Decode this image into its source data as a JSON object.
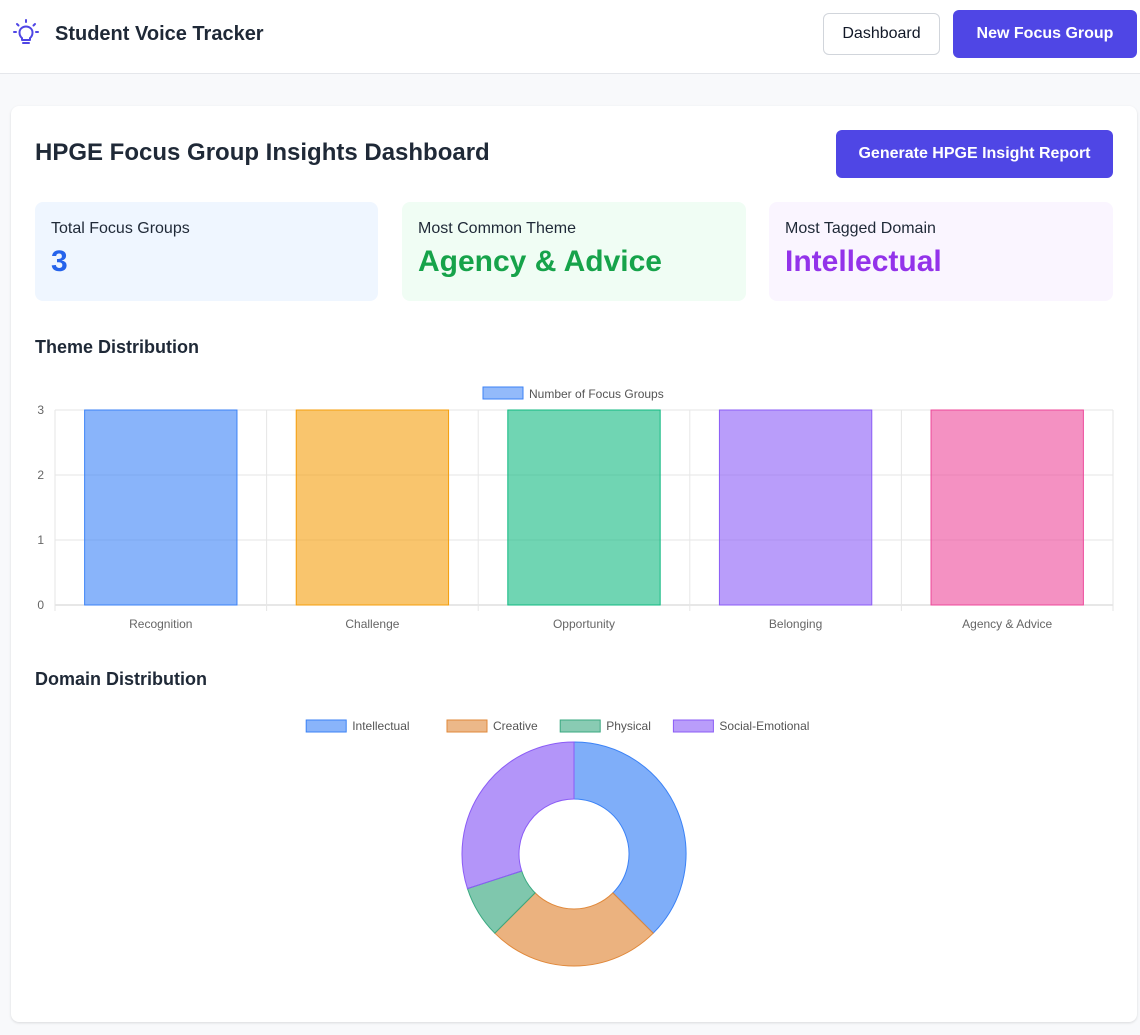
{
  "app": {
    "title": "Student Voice Tracker",
    "icon": "lightbulb-icon",
    "accent_color": "#4f46e5"
  },
  "nav": {
    "dashboard_label": "Dashboard",
    "new_focus_group_label": "New Focus Group"
  },
  "main": {
    "title": "HPGE Focus Group Insights Dashboard",
    "report_button_label": "Generate HPGE Insight Report"
  },
  "stats": [
    {
      "label": "Total Focus Groups",
      "value": "3",
      "color": "#2563eb"
    },
    {
      "label": "Most Common Theme",
      "value": "Agency & Advice",
      "color": "#16a34a"
    },
    {
      "label": "Most Tagged Domain",
      "value": "Intellectual",
      "color": "#9333ea"
    }
  ],
  "sections": {
    "theme_title": "Theme Distribution",
    "domain_title": "Domain Distribution"
  },
  "chart_data": [
    {
      "type": "bar",
      "legend": [
        "Number of Focus Groups"
      ],
      "legend_placement": "top",
      "categories": [
        "Recognition",
        "Challenge",
        "Opportunity",
        "Belonging",
        "Agency & Advice"
      ],
      "series": [
        {
          "name": "Number of Focus Groups",
          "values": [
            3,
            3,
            3,
            3,
            3
          ]
        }
      ],
      "colors": [
        "#3b82f6",
        "#f59e0b",
        "#10b981",
        "#8b5cf6",
        "#ec4899"
      ],
      "ylim": [
        0,
        3
      ],
      "yticks": [
        "0",
        "1",
        "2",
        "3"
      ],
      "grid": true
    },
    {
      "type": "pie",
      "legend": [
        "Intellectual",
        "Creative",
        "Physical",
        "Social-Emotional"
      ],
      "legend_placement": "top",
      "categories": [
        "Intellectual",
        "Creative",
        "Physical",
        "Social-Emotional"
      ],
      "values": [
        3,
        2,
        0.6,
        2.4
      ],
      "colors": [
        "#3b82f6",
        "#e0883a",
        "#3aa981",
        "#8b5cf6"
      ]
    }
  ]
}
